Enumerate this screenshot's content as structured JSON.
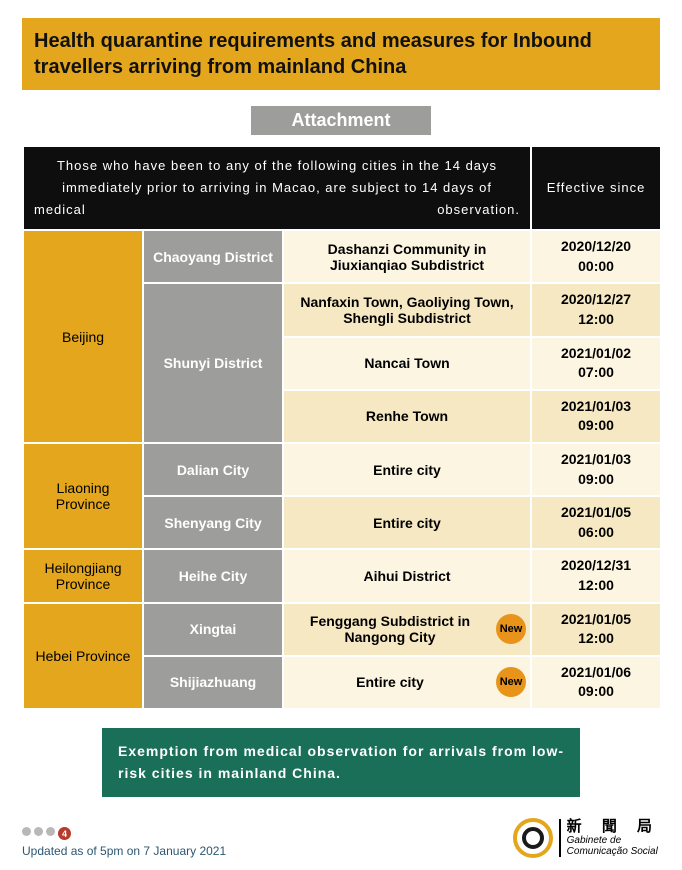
{
  "colors": {
    "orange": "#e3a61c",
    "orange_dark": "#d99512",
    "cream": "#f6e8c2",
    "cream_light": "#fcf5e1",
    "gray": "#9d9d9c",
    "black": "#0e0e0e",
    "teal": "#1a6f58",
    "new_badge": "#e8941a",
    "footer_text": "#2c5770",
    "dot_gray": "#b8b8b8",
    "dot_red": "#b83a2a"
  },
  "title": "Health quarantine requirements and measures for Inbound travellers arriving from mainland China",
  "attachment_label": "Attachment",
  "table_header_left": "Those who have been to any of the following cities in the 14 days immediately prior to arriving in Macao, are subject to 14 days of medical observation.",
  "table_header_right": "Effective since",
  "rows": [
    {
      "province": "Beijing",
      "district": "Chaoyang District",
      "area": "Dashanzi Community in Jiuxianqiao Subdistrict",
      "date": "2020/12/20\n00:00",
      "prov_span": 4,
      "dist_span": 1,
      "new": false,
      "shade": "light"
    },
    {
      "district": "Shunyi District",
      "area": "Nanfaxin Town, Gaoliying Town, Shengli Subdistrict",
      "date": "2020/12/27\n12:00",
      "dist_span": 3,
      "new": false,
      "shade": "dark"
    },
    {
      "area": "Nancai Town",
      "date": "2021/01/02\n07:00",
      "new": false,
      "shade": "light"
    },
    {
      "area": "Renhe Town",
      "date": "2021/01/03\n09:00",
      "new": false,
      "shade": "dark"
    },
    {
      "province": "Liaoning Province",
      "district": "Dalian City",
      "area": "Entire city",
      "date": "2021/01/03\n09:00",
      "prov_span": 2,
      "dist_span": 1,
      "new": false,
      "shade": "light"
    },
    {
      "district": "Shenyang City",
      "area": "Entire city",
      "date": "2021/01/05\n06:00",
      "dist_span": 1,
      "new": false,
      "shade": "dark"
    },
    {
      "province": "Heilongjiang Province",
      "district": "Heihe City",
      "area": "Aihui District",
      "date": "2020/12/31\n12:00",
      "prov_span": 1,
      "dist_span": 1,
      "new": false,
      "shade": "light"
    },
    {
      "province": "Hebei Province",
      "district": "Xingtai",
      "area": "Fenggang Subdistrict in Nangong City",
      "date": "2021/01/05\n12:00",
      "prov_span": 2,
      "dist_span": 1,
      "new": true,
      "shade": "dark"
    },
    {
      "district": "Shijiazhuang",
      "area": "Entire city",
      "date": "2021/01/06\n09:00",
      "dist_span": 1,
      "new": true,
      "shade": "light"
    }
  ],
  "new_label": "New",
  "exemption": "Exemption from medical observation for arrivals from low-risk cities in mainland China.",
  "page_dot": "4",
  "updated": "Updated as of 5pm on 7 January 2021",
  "logo": {
    "cn": "新 聞 局",
    "pt1": "Gabinete de",
    "pt2": "Comunicação Social"
  },
  "col_widths": {
    "prov": 120,
    "dist": 140,
    "area": 248,
    "date": 130
  }
}
